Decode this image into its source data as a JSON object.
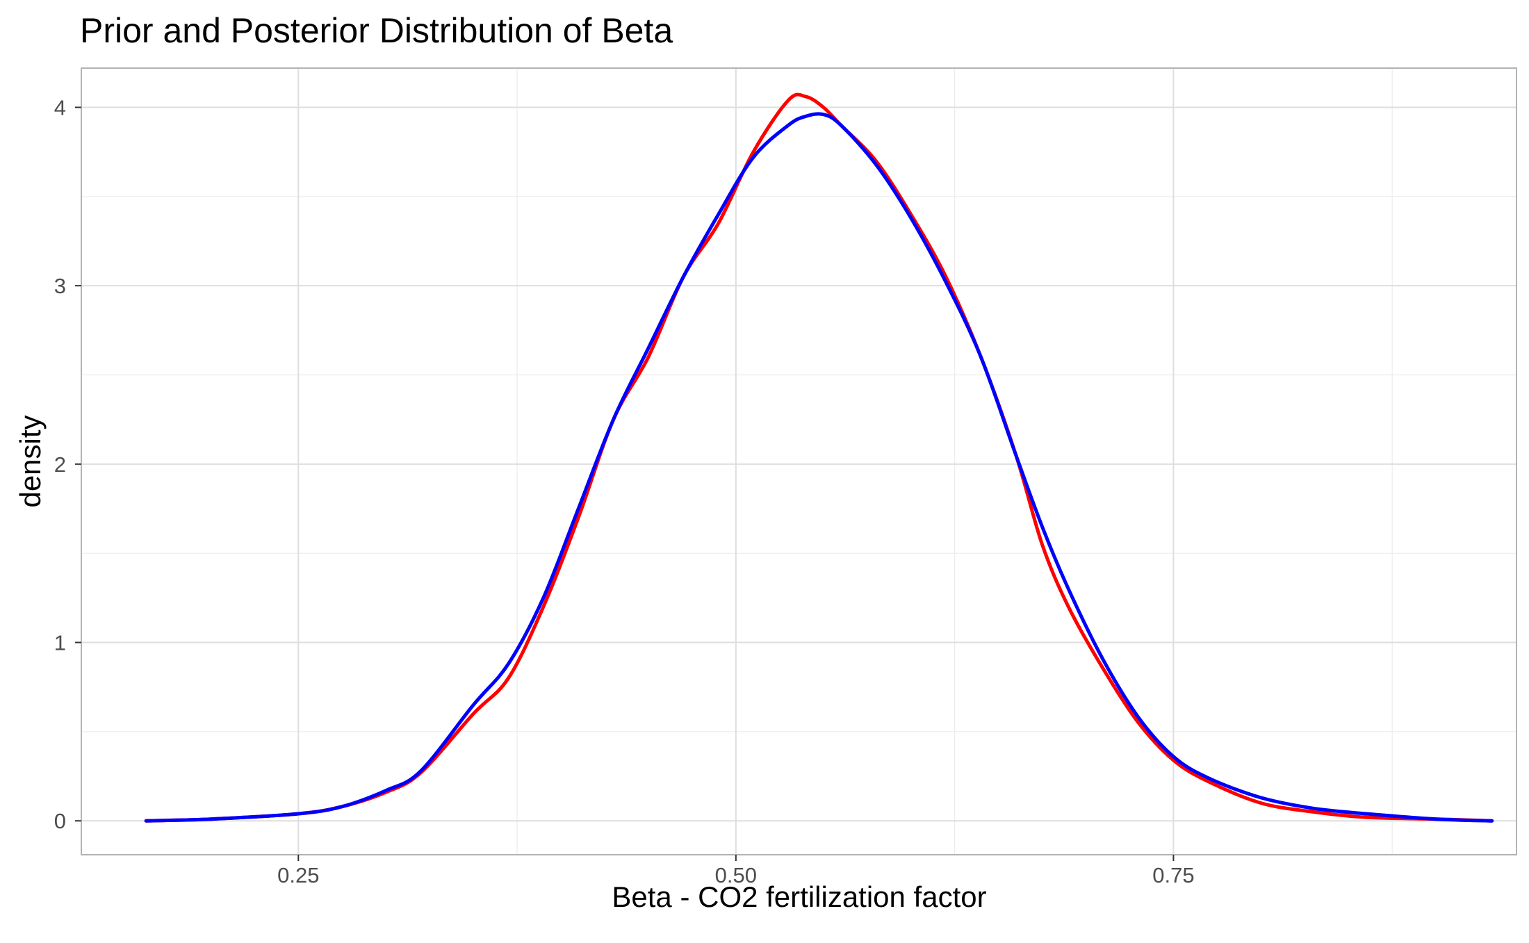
{
  "chart_data": {
    "type": "line",
    "title": "Prior and Posterior Distribution of Beta",
    "xlabel": "Beta - CO2 fertilization factor",
    "ylabel": "density",
    "xlim": [
      0.126,
      0.946
    ],
    "ylim": [
      -0.19,
      4.22
    ],
    "x_ticks": [
      0.25,
      0.5,
      0.75
    ],
    "x_tick_labels": [
      "0.25",
      "0.50",
      "0.75"
    ],
    "y_ticks": [
      0,
      1,
      2,
      3,
      4
    ],
    "y_tick_labels": [
      "0",
      "1",
      "2",
      "3",
      "4"
    ],
    "grid": true,
    "legend": "none",
    "series": [
      {
        "color": "#ff0000",
        "x": [
          0.163,
          0.2,
          0.25,
          0.275,
          0.3,
          0.32,
          0.35,
          0.37,
          0.39,
          0.41,
          0.43,
          0.45,
          0.47,
          0.49,
          0.51,
          0.53,
          0.54,
          0.55,
          0.56,
          0.58,
          0.6,
          0.62,
          0.64,
          0.66,
          0.675,
          0.69,
          0.71,
          0.73,
          0.75,
          0.77,
          0.8,
          0.83,
          0.86,
          0.9,
          0.932
        ],
        "y": [
          0.0,
          0.01,
          0.04,
          0.08,
          0.16,
          0.27,
          0.6,
          0.8,
          1.2,
          1.7,
          2.25,
          2.6,
          3.05,
          3.35,
          3.75,
          4.04,
          4.06,
          4.0,
          3.9,
          3.7,
          3.4,
          3.05,
          2.6,
          2.05,
          1.55,
          1.2,
          0.85,
          0.55,
          0.34,
          0.22,
          0.1,
          0.05,
          0.02,
          0.01,
          0.0
        ]
      },
      {
        "color": "#0000ff",
        "x": [
          0.163,
          0.2,
          0.25,
          0.275,
          0.3,
          0.32,
          0.35,
          0.37,
          0.39,
          0.41,
          0.43,
          0.45,
          0.47,
          0.49,
          0.51,
          0.53,
          0.54,
          0.55,
          0.56,
          0.58,
          0.6,
          0.62,
          0.64,
          0.66,
          0.675,
          0.69,
          0.71,
          0.73,
          0.75,
          0.77,
          0.8,
          0.83,
          0.86,
          0.9,
          0.932
        ],
        "y": [
          0.0,
          0.01,
          0.04,
          0.08,
          0.17,
          0.28,
          0.65,
          0.88,
          1.25,
          1.75,
          2.25,
          2.65,
          3.05,
          3.4,
          3.72,
          3.9,
          3.95,
          3.96,
          3.9,
          3.68,
          3.38,
          3.02,
          2.6,
          2.05,
          1.65,
          1.3,
          0.9,
          0.58,
          0.36,
          0.24,
          0.13,
          0.07,
          0.04,
          0.01,
          0.0
        ]
      }
    ]
  }
}
